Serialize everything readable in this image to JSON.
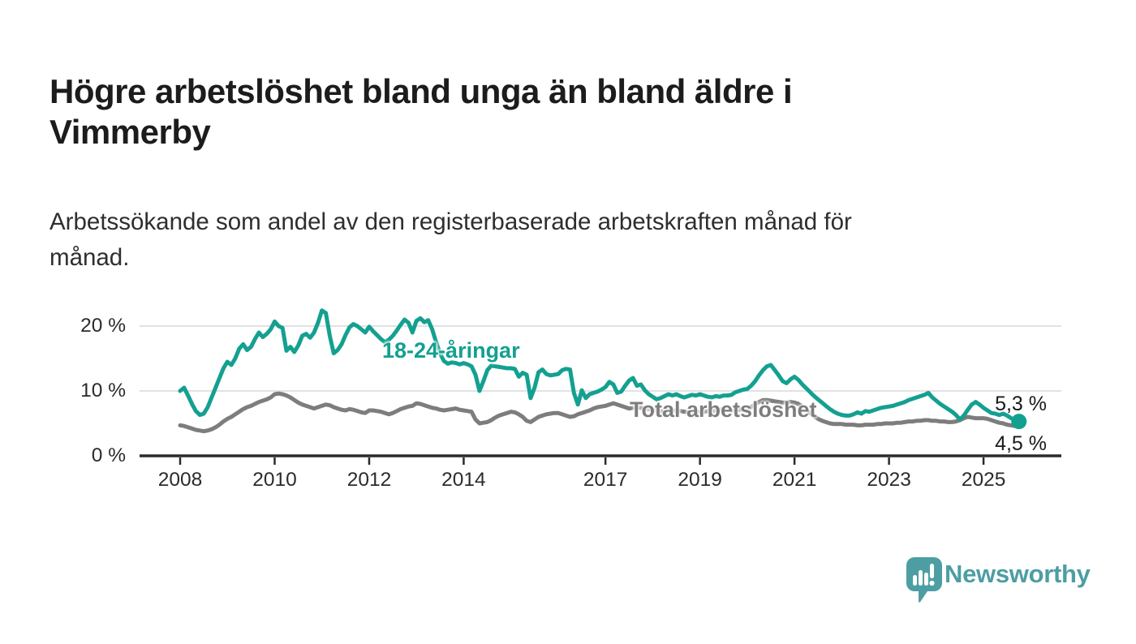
{
  "chart_data": {
    "type": "line",
    "title": "Högre arbetslöshet bland unga än bland äldre i\nVimmerby",
    "subtitle": "Arbetssökande som andel av den registerbaserade arbetskraften månad för\nmånad.",
    "unit": "%",
    "frequency": "monthly",
    "x_start": "2008-01",
    "x_end": "2025-10",
    "ylim": [
      0,
      24
    ],
    "grid": true,
    "legend": "inline-labels",
    "y_axis_ticks": [
      {
        "value": 0,
        "label": "0 %"
      },
      {
        "value": 10,
        "label": "10 %"
      },
      {
        "value": 20,
        "label": "20 %"
      }
    ],
    "x_axis_ticks": [
      {
        "year": 2008,
        "label": "2008"
      },
      {
        "year": 2010,
        "label": "2010"
      },
      {
        "year": 2012,
        "label": "2012"
      },
      {
        "year": 2014,
        "label": "2014"
      },
      {
        "year": 2017,
        "label": "2017"
      },
      {
        "year": 2019,
        "label": "2019"
      },
      {
        "year": 2021,
        "label": "2021"
      },
      {
        "year": 2023,
        "label": "2023"
      },
      {
        "year": 2025,
        "label": "2025"
      }
    ],
    "series": [
      {
        "name": "18-24-åringar",
        "color": "#14a091",
        "end_label": "5,3 %",
        "end_value": 5.3,
        "end_dot": true,
        "values": [
          10.0,
          10.5,
          9.3,
          8.0,
          6.9,
          6.3,
          6.5,
          7.5,
          9.0,
          10.5,
          12.0,
          13.5,
          14.5,
          14.0,
          15.0,
          16.5,
          17.2,
          16.3,
          16.8,
          18.0,
          19.0,
          18.3,
          18.8,
          19.5,
          20.7,
          20.0,
          19.7,
          16.2,
          16.8,
          16.0,
          17.0,
          18.5,
          18.8,
          18.2,
          19.0,
          20.5,
          22.4,
          22.0,
          18.5,
          15.8,
          16.3,
          17.2,
          18.6,
          19.8,
          20.3,
          20.0,
          19.5,
          19.0,
          19.9,
          19.2,
          18.6,
          18.0,
          17.5,
          17.9,
          18.5,
          19.3,
          20.2,
          21.0,
          20.5,
          19.0,
          20.8,
          21.2,
          20.6,
          20.9,
          19.5,
          17.5,
          15.8,
          14.6,
          14.2,
          14.4,
          14.3,
          14.1,
          14.3,
          14.1,
          13.8,
          12.5,
          10.0,
          11.5,
          13.2,
          13.9,
          13.8,
          13.7,
          13.6,
          13.5,
          13.5,
          13.4,
          12.2,
          12.8,
          12.5,
          8.9,
          10.5,
          12.9,
          13.3,
          12.6,
          12.4,
          12.5,
          12.6,
          13.2,
          13.4,
          13.3,
          9.7,
          7.9,
          10.1,
          8.9,
          9.5,
          9.7,
          9.9,
          10.2,
          10.6,
          11.4,
          11.0,
          9.7,
          9.9,
          10.8,
          11.6,
          12.0,
          10.8,
          11.0,
          10.1,
          9.5,
          9.1,
          8.7,
          8.9,
          9.2,
          9.5,
          9.3,
          9.5,
          9.2,
          9.0,
          9.2,
          9.4,
          9.3,
          9.5,
          9.3,
          9.1,
          9.0,
          9.2,
          9.1,
          9.3,
          9.3,
          9.4,
          9.8,
          10.0,
          10.2,
          10.3,
          10.8,
          11.5,
          12.4,
          13.2,
          13.8,
          14.0,
          13.2,
          12.4,
          11.5,
          11.2,
          11.8,
          12.2,
          11.7,
          11.0,
          10.4,
          9.8,
          9.2,
          8.7,
          8.2,
          7.7,
          7.2,
          6.8,
          6.5,
          6.3,
          6.2,
          6.2,
          6.4,
          6.7,
          6.5,
          6.9,
          6.8,
          7.0,
          7.2,
          7.4,
          7.5,
          7.6,
          7.7,
          7.9,
          8.1,
          8.3,
          8.6,
          8.8,
          9.0,
          9.2,
          9.4,
          9.7,
          9.0,
          8.5,
          8.0,
          7.6,
          7.2,
          6.8,
          6.3,
          5.6,
          6.2,
          7.1,
          7.9,
          8.3,
          7.9,
          7.4,
          7.0,
          6.6,
          6.5,
          6.3,
          6.5,
          6.2,
          5.8,
          5.6,
          5.3
        ]
      },
      {
        "name": "Total arbetslöshet",
        "color": "#7d7d7d",
        "end_label": "4,5 %",
        "end_value": 4.5,
        "end_dot": false,
        "values": [
          4.7,
          4.6,
          4.4,
          4.2,
          4.0,
          3.9,
          3.8,
          3.9,
          4.1,
          4.4,
          4.8,
          5.3,
          5.7,
          6.0,
          6.4,
          6.8,
          7.2,
          7.5,
          7.7,
          8.0,
          8.3,
          8.5,
          8.7,
          9.0,
          9.5,
          9.6,
          9.5,
          9.3,
          9.0,
          8.6,
          8.2,
          7.9,
          7.7,
          7.5,
          7.3,
          7.5,
          7.7,
          7.9,
          7.8,
          7.5,
          7.3,
          7.1,
          7.0,
          7.2,
          7.1,
          6.9,
          6.7,
          6.6,
          7.0,
          7.0,
          6.9,
          6.8,
          6.6,
          6.4,
          6.6,
          6.9,
          7.2,
          7.4,
          7.6,
          7.7,
          8.1,
          8.0,
          7.8,
          7.6,
          7.4,
          7.3,
          7.1,
          7.0,
          7.1,
          7.2,
          7.3,
          7.1,
          7.0,
          6.9,
          6.8,
          5.6,
          5.0,
          5.1,
          5.2,
          5.5,
          5.9,
          6.2,
          6.4,
          6.6,
          6.8,
          6.7,
          6.4,
          6.0,
          5.4,
          5.2,
          5.6,
          6.0,
          6.2,
          6.4,
          6.5,
          6.6,
          6.6,
          6.4,
          6.2,
          6.0,
          6.1,
          6.4,
          6.6,
          6.8,
          7.0,
          7.3,
          7.5,
          7.6,
          7.7,
          7.9,
          8.1,
          7.9,
          7.7,
          7.5,
          7.3,
          7.4,
          7.5,
          7.4,
          7.3,
          7.2,
          7.1,
          7.0,
          6.9,
          6.8,
          6.9,
          7.0,
          7.0,
          6.9,
          6.8,
          6.7,
          6.7,
          6.8,
          6.8,
          6.8,
          6.9,
          6.9,
          7.0,
          7.1,
          7.2,
          7.1,
          7.0,
          7.0,
          7.1,
          7.2,
          7.3,
          7.5,
          7.9,
          8.3,
          8.6,
          8.6,
          8.5,
          8.4,
          8.3,
          8.2,
          8.2,
          8.3,
          8.2,
          8.0,
          7.6,
          7.1,
          6.6,
          6.1,
          5.7,
          5.4,
          5.2,
          5.0,
          4.9,
          4.9,
          4.9,
          4.8,
          4.8,
          4.8,
          4.7,
          4.7,
          4.8,
          4.8,
          4.8,
          4.9,
          4.9,
          5.0,
          5.0,
          5.0,
          5.1,
          5.1,
          5.2,
          5.3,
          5.3,
          5.4,
          5.4,
          5.5,
          5.5,
          5.4,
          5.4,
          5.3,
          5.3,
          5.2,
          5.2,
          5.3,
          5.5,
          5.8,
          6.0,
          5.9,
          5.8,
          5.8,
          5.8,
          5.7,
          5.5,
          5.3,
          5.1,
          5.0,
          4.8,
          4.7,
          4.6,
          4.5
        ]
      }
    ]
  },
  "branding": {
    "logo_text": "Newsworthy",
    "logo_color": "#4d9ea3",
    "icon": "speech-bubble-bar-chart-icon"
  },
  "colors": {
    "youth_line": "#14a091",
    "total_line": "#7d7d7d",
    "gridline": "#d9d9d9",
    "axis": "#2b2b2b",
    "text": "#1c1c1c"
  }
}
